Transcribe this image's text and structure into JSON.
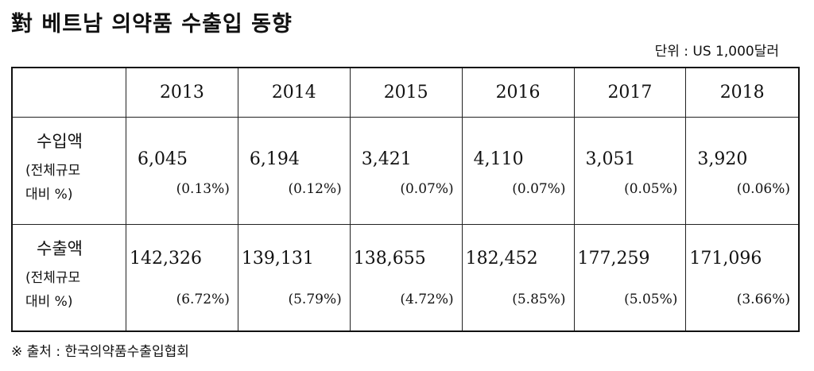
{
  "title": "對 베트남 의약품 수출입 동향",
  "unit": "단위 : US 1,000달러",
  "years": [
    "2013",
    "2014",
    "2015",
    "2016",
    "2017",
    "2018"
  ],
  "rows": [
    {
      "label": "수입액",
      "sub1": "(전체규모",
      "sub2": "대비 %)",
      "values": [
        "6,045",
        "6,194",
        "3,421",
        "4,110",
        "3,051",
        "3,920"
      ],
      "pcts": [
        "(0.13%)",
        "(0.12%)",
        "(0.07%)",
        "(0.07%)",
        "(0.05%)",
        "(0.06%)"
      ]
    },
    {
      "label": "수출액",
      "sub1": "(전체규모",
      "sub2": "대비 %)",
      "values": [
        "142,326",
        "139,131",
        "138,655",
        "182,452",
        "177,259",
        "171,096"
      ],
      "pcts": [
        "(6.72%)",
        "(5.79%)",
        "(4.72%)",
        "(5.85%)",
        "(5.05%)",
        "(3.66%)"
      ]
    }
  ],
  "source": "※ 출처 : 한국의약품수출입협회"
}
